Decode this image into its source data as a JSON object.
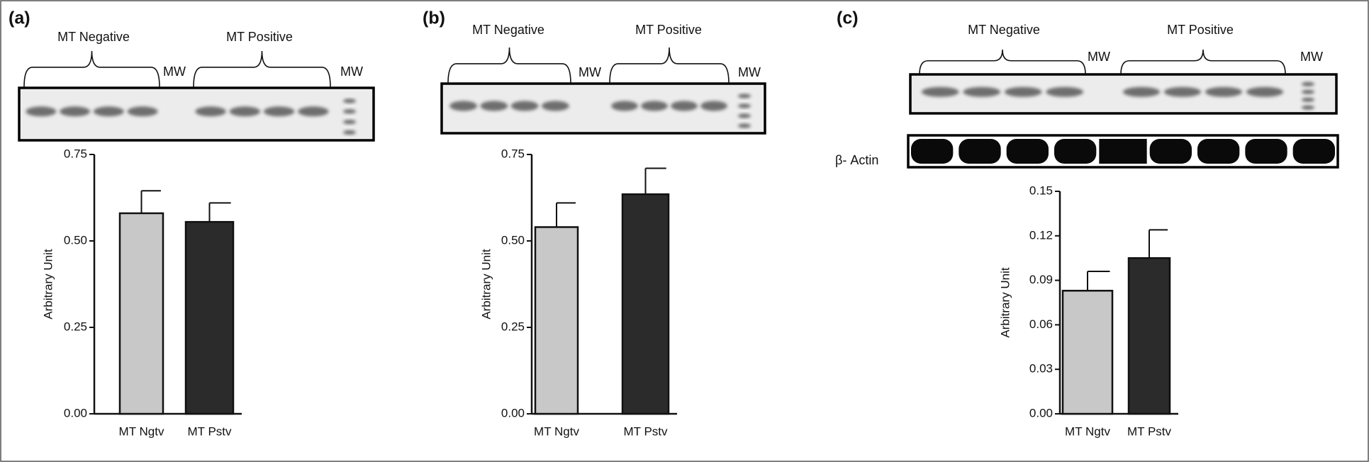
{
  "chart_data": [
    {
      "type": "bar",
      "panel": "(a)",
      "blot": {
        "groups": [
          "MT Negative",
          "MT Positive"
        ],
        "markers": [
          "MW",
          "MW"
        ]
      },
      "categories": [
        "MT Ngtv",
        "MT Pstv"
      ],
      "values": [
        0.58,
        0.555
      ],
      "errors": [
        0.065,
        0.055
      ],
      "colors": [
        "#c8c8c8",
        "#2b2b2b"
      ],
      "ylabel": "Arbitrary Unit",
      "ylim": [
        0,
        0.75
      ],
      "yticks": [
        {
          "value": 0,
          "label": "0.00"
        },
        0.25,
        {
          "value": 0.5,
          "label": "0.50"
        },
        0.75
      ]
    },
    {
      "type": "bar",
      "panel": "(b)",
      "blot": {
        "groups": [
          "MT Negative",
          "MT Positive"
        ],
        "markers": [
          "MW",
          "MW"
        ]
      },
      "categories": [
        "MT Ngtv",
        "MT Pstv"
      ],
      "values": [
        0.54,
        0.635
      ],
      "errors": [
        0.07,
        0.075
      ],
      "colors": [
        "#c8c8c8",
        "#2b2b2b"
      ],
      "ylabel": "Arbitrary Unit",
      "ylim": [
        0,
        0.75
      ],
      "yticks": [
        {
          "value": 0,
          "label": "0.00"
        },
        0.25,
        {
          "value": 0.5,
          "label": "0.50"
        },
        0.75
      ]
    },
    {
      "type": "bar",
      "panel": "(c)",
      "blot": {
        "groups": [
          "MT Negative",
          "MT Positive"
        ],
        "markers": [
          "MW",
          "MW"
        ],
        "loading_control": "β- Actin"
      },
      "categories": [
        "MT Ngtv",
        "MT Pstv"
      ],
      "values": [
        0.083,
        0.105
      ],
      "errors": [
        0.013,
        0.019
      ],
      "colors": [
        "#c8c8c8",
        "#2b2b2b"
      ],
      "ylabel": "Arbitrary Unit",
      "ylim": [
        0,
        0.15
      ],
      "yticks": [
        {
          "value": 0,
          "label": "0.00"
        },
        0.03,
        0.06,
        0.09,
        0.12,
        0.15
      ]
    }
  ]
}
